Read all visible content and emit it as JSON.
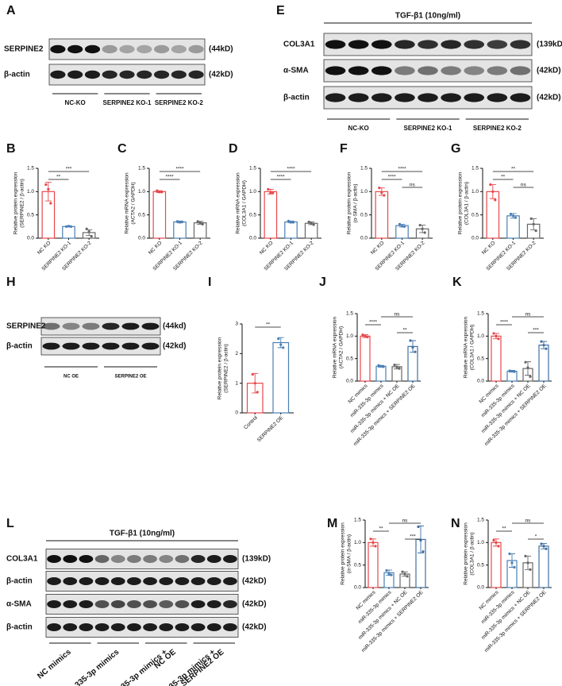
{
  "blots": [
    {
      "panel": "A",
      "rows": [
        {
          "name": "SERPINE2",
          "size": "(44kD)"
        },
        {
          "name": "β-actin",
          "size": "(42kD)"
        }
      ],
      "groups": [
        "NC-KO",
        "SERPINE2 KO-1",
        "SERPINE2 KO-2"
      ]
    },
    {
      "panel": "E",
      "header": "TGF-β1 (10ng/ml)",
      "rows": [
        {
          "name": "COL3A1",
          "size": "(139kD)"
        },
        {
          "name": "α-SMA",
          "size": "(42kD)"
        },
        {
          "name": "β-actin",
          "size": "(42kD)"
        }
      ],
      "groups": [
        "NC-KO",
        "SERPINE2 KO-1",
        "SERPINE2 KO-2"
      ]
    },
    {
      "panel": "H",
      "rows": [
        {
          "name": "SERPINE2",
          "size": "(44kd)"
        },
        {
          "name": "β-actin",
          "size": "(42kd)"
        }
      ],
      "groups": [
        "NC OE",
        "SERPINE2 OE"
      ]
    },
    {
      "panel": "L",
      "header": "TGF-β1 (10ng/ml)",
      "rows": [
        {
          "name": "COL3A1",
          "size": "(139kD)"
        },
        {
          "name": "β-actin",
          "size": "(42kD)"
        },
        {
          "name": "α-SMA",
          "size": "(42kD)"
        },
        {
          "name": "β-actin",
          "size": "(42kD)"
        }
      ],
      "groups": [
        [
          "NC mimics"
        ],
        [
          "miR-335-3p mimics"
        ],
        [
          "miR-335-3p mimics +",
          "NC OE"
        ],
        [
          "miR-335-3p mimics +",
          "SERPINE2 OE"
        ]
      ]
    }
  ],
  "chart_data": [
    {
      "type": "bar",
      "panel": "B",
      "ylabel": [
        "Relative protein expression",
        "(SERPINE2 / β-actin)"
      ],
      "categories": [
        "NC KO",
        "SERPINE2 KO-1",
        "SERPINE2 KO-2"
      ],
      "colors": [
        "#e8474b",
        "#4a7fb5",
        "#666666"
      ],
      "values": [
        1.0,
        0.25,
        0.12
      ],
      "errors": [
        0.2,
        0.01,
        0.06
      ],
      "points": [
        [
          1.15,
          1.05,
          0.75
        ],
        [
          0.25,
          0.26,
          0.25
        ],
        [
          0.2,
          0.14,
          0.04
        ]
      ],
      "ylim": [
        0,
        1.5
      ],
      "yticks": [
        {
          "value": 0,
          "label": "0.0"
        },
        {
          "value": 0.5,
          "label": "0.5"
        },
        {
          "value": 1,
          "label": "1.0"
        },
        {
          "value": 1.5,
          "label": "1.5"
        }
      ],
      "significance": [
        {
          "pair": [
            "NC KO",
            "SERPINE2 KO-2"
          ],
          "label": "***"
        },
        {
          "pair": [
            "NC KO",
            "SERPINE2 KO-1"
          ],
          "label": "**"
        }
      ]
    },
    {
      "type": "bar",
      "panel": "C",
      "ylabel": [
        "Relative mRNA expression",
        "(ACTA2 / GAPDH)"
      ],
      "categories": [
        "NC KO",
        "SERPINE2 KO-1",
        "SERPINE2 KO-2"
      ],
      "colors": [
        "#e8474b",
        "#4a7fb5",
        "#666666"
      ],
      "values": [
        1.0,
        0.35,
        0.33
      ],
      "errors": [
        0.02,
        0.02,
        0.03
      ],
      "points": [
        [
          1.02,
          0.99,
          0.99
        ],
        [
          0.36,
          0.34,
          0.35
        ],
        [
          0.36,
          0.33,
          0.3
        ]
      ],
      "ylim": [
        0,
        1.5
      ],
      "yticks": [
        {
          "value": 0,
          "label": "0.0"
        },
        {
          "value": 0.5,
          "label": "0.5"
        },
        {
          "value": 1,
          "label": "1.0"
        },
        {
          "value": 1.5,
          "label": "1.5"
        }
      ],
      "significance": [
        {
          "pair": [
            "NC KO",
            "SERPINE2 KO-2"
          ],
          "label": "****"
        },
        {
          "pair": [
            "NC KO",
            "SERPINE2 KO-1"
          ],
          "label": "****"
        }
      ]
    },
    {
      "type": "bar",
      "panel": "D",
      "ylabel": [
        "Relative mRNA expression",
        "(COL3A1 / GAPDH)"
      ],
      "categories": [
        "NC KO",
        "SERPINE2 KO-1",
        "SERPINE2 KO-2"
      ],
      "colors": [
        "#e8474b",
        "#4a7fb5",
        "#666666"
      ],
      "values": [
        1.0,
        0.35,
        0.32
      ],
      "errors": [
        0.05,
        0.02,
        0.03
      ],
      "points": [
        [
          1.05,
          0.97,
          0.98
        ],
        [
          0.37,
          0.34,
          0.34
        ],
        [
          0.35,
          0.32,
          0.29
        ]
      ],
      "ylim": [
        0,
        1.5
      ],
      "yticks": [
        {
          "value": 0,
          "label": "0.0"
        },
        {
          "value": 0.5,
          "label": "0.5"
        },
        {
          "value": 1,
          "label": "1.0"
        },
        {
          "value": 1.5,
          "label": "1.5"
        }
      ],
      "significance": [
        {
          "pair": [
            "NC KO",
            "SERPINE2 KO-2"
          ],
          "label": "****"
        },
        {
          "pair": [
            "NC KO",
            "SERPINE2 KO-1"
          ],
          "label": "****"
        }
      ]
    },
    {
      "type": "bar",
      "panel": "F",
      "ylabel": [
        "Relative protein expression",
        "(α-SMA / β-actin)"
      ],
      "categories": [
        "NC KO",
        "SERPINE2 KO-1",
        "SERPINE2 KO-2"
      ],
      "colors": [
        "#e8474b",
        "#4a7fb5",
        "#666666"
      ],
      "values": [
        1.0,
        0.27,
        0.2
      ],
      "errors": [
        0.08,
        0.03,
        0.08
      ],
      "points": [
        [
          1.08,
          0.98,
          0.92
        ],
        [
          0.3,
          0.26,
          0.25
        ],
        [
          0.28,
          0.2,
          0.12
        ]
      ],
      "ylim": [
        0,
        1.5
      ],
      "yticks": [
        {
          "value": 0,
          "label": "0.0"
        },
        {
          "value": 0.5,
          "label": "0.5"
        },
        {
          "value": 1,
          "label": "1.0"
        },
        {
          "value": 1.5,
          "label": "1.5"
        }
      ],
      "significance": [
        {
          "pair": [
            "NC KO",
            "SERPINE2 KO-2"
          ],
          "label": "****"
        },
        {
          "pair": [
            "NC KO",
            "SERPINE2 KO-1"
          ],
          "label": "****"
        },
        {
          "pair": [
            "SERPINE2 KO-1",
            "SERPINE2 KO-2"
          ],
          "label": "ns"
        }
      ]
    },
    {
      "type": "bar",
      "panel": "G",
      "ylabel": [
        "Relative protein expression",
        "(COL3A1 / β-actin)"
      ],
      "categories": [
        "NC KO",
        "SERPINE2 KO-1",
        "SERPINE2 KO-2"
      ],
      "colors": [
        "#e8474b",
        "#4a7fb5",
        "#666666"
      ],
      "values": [
        1.0,
        0.48,
        0.3
      ],
      "errors": [
        0.15,
        0.05,
        0.12
      ],
      "points": [
        [
          1.15,
          1.0,
          0.82
        ],
        [
          0.52,
          0.48,
          0.44
        ],
        [
          0.42,
          0.3,
          0.16
        ]
      ],
      "ylim": [
        0,
        1.5
      ],
      "yticks": [
        {
          "value": 0,
          "label": "0.0"
        },
        {
          "value": 0.5,
          "label": "0.5"
        },
        {
          "value": 1,
          "label": "1.0"
        },
        {
          "value": 1.5,
          "label": "1.5"
        }
      ],
      "significance": [
        {
          "pair": [
            "NC KO",
            "SERPINE2 KO-2"
          ],
          "label": "**"
        },
        {
          "pair": [
            "NC KO",
            "SERPINE2 KO-1"
          ],
          "label": "**"
        },
        {
          "pair": [
            "SERPINE2 KO-1",
            "SERPINE2 KO-2"
          ],
          "label": "ns"
        }
      ]
    },
    {
      "type": "bar",
      "panel": "I",
      "ylabel": [
        "Relative protein expression",
        "(SERPINE2 / β-actin)"
      ],
      "categories": [
        "Control",
        "SERPINE2 OE"
      ],
      "colors": [
        "#e8474b",
        "#4a7fb5"
      ],
      "values": [
        1.0,
        2.37
      ],
      "errors": [
        0.33,
        0.17
      ],
      "points": [
        [
          1.3,
          1.0,
          0.7
        ],
        [
          2.5,
          2.3,
          2.2
        ]
      ],
      "ylim": [
        0,
        3
      ],
      "yticks": [
        0,
        1,
        2,
        3
      ],
      "significance": [
        {
          "pair": [
            "Control",
            "SERPINE2 OE"
          ],
          "label": "**"
        }
      ]
    },
    {
      "type": "bar",
      "panel": "J",
      "ylabel": [
        "Relative mRNA expression",
        "(ACTA2 / GAPDH)"
      ],
      "categories": [
        "NC mimics",
        "miR-335-3p mimics",
        "miR-335-3p mimics + NC OE",
        "miR-335-3p mimics + SERPINE2 OE"
      ],
      "colors": [
        "#e8474b",
        "#4a7fb5",
        "#666666",
        "#3f6fa0"
      ],
      "values": [
        1.0,
        0.33,
        0.32,
        0.77
      ],
      "errors": [
        0.03,
        0.02,
        0.05,
        0.13
      ],
      "points": [
        [
          1.03,
          1.0,
          0.98
        ],
        [
          0.35,
          0.33,
          0.32
        ],
        [
          0.36,
          0.31,
          0.28
        ],
        [
          0.9,
          0.75,
          0.65
        ]
      ],
      "ylim": [
        0,
        1.5
      ],
      "yticks": [
        {
          "value": 0,
          "label": "0.0"
        },
        {
          "value": 0.5,
          "label": "0.5"
        },
        {
          "value": 1,
          "label": "1.0"
        },
        {
          "value": 1.5,
          "label": "1.5"
        }
      ],
      "significance": [
        {
          "pair": [
            "miR-335-3p mimics",
            "miR-335-3p mimics + SERPINE2 OE"
          ],
          "label": "ns"
        },
        {
          "pair": [
            "NC mimics",
            "miR-335-3p mimics"
          ],
          "label": "****"
        },
        {
          "pair": [
            "miR-335-3p mimics + NC OE",
            "miR-335-3p mimics + SERPINE2 OE"
          ],
          "label": "**"
        }
      ]
    },
    {
      "type": "bar",
      "panel": "K",
      "ylabel": [
        "Relative mRNA expression",
        "(COL3A1 / GAPDH)"
      ],
      "categories": [
        "NC mimics",
        "miR-335-3p mimics",
        "miR-335-3p mimics + NC OE",
        "miR-335-3p mimics + SERPINE2 OE"
      ],
      "colors": [
        "#e8474b",
        "#4a7fb5",
        "#666666",
        "#3f6fa0"
      ],
      "values": [
        1.0,
        0.22,
        0.28,
        0.8
      ],
      "errors": [
        0.06,
        0.02,
        0.15,
        0.08
      ],
      "points": [
        [
          1.06,
          1.0,
          0.94
        ],
        [
          0.23,
          0.22,
          0.21
        ],
        [
          0.42,
          0.3,
          0.1
        ],
        [
          0.88,
          0.8,
          0.72
        ]
      ],
      "ylim": [
        0,
        1.5
      ],
      "yticks": [
        {
          "value": 0,
          "label": "0.0"
        },
        {
          "value": 0.5,
          "label": "0.5"
        },
        {
          "value": 1,
          "label": "1.0"
        },
        {
          "value": 1.5,
          "label": "1.5"
        }
      ],
      "significance": [
        {
          "pair": [
            "miR-335-3p mimics",
            "miR-335-3p mimics + SERPINE2 OE"
          ],
          "label": "ns"
        },
        {
          "pair": [
            "NC mimics",
            "miR-335-3p mimics"
          ],
          "label": "****"
        },
        {
          "pair": [
            "miR-335-3p mimics + NC OE",
            "miR-335-3p mimics + SERPINE2 OE"
          ],
          "label": "***"
        }
      ]
    },
    {
      "type": "bar",
      "panel": "M",
      "ylabel": [
        "Relative protein expression",
        "(α-SMA / β-actin)"
      ],
      "categories": [
        "NC mimics",
        "miR-335-3p mimics",
        "miR-335-3p mimics + NC OE",
        "miR-335-3p mimics + SERPINE2 OE"
      ],
      "colors": [
        "#e8474b",
        "#4a7fb5",
        "#666666",
        "#3f6fa0"
      ],
      "values": [
        1.0,
        0.33,
        0.3,
        1.07
      ],
      "errors": [
        0.08,
        0.06,
        0.05,
        0.3
      ],
      "points": [
        [
          1.08,
          1.0,
          0.92
        ],
        [
          0.38,
          0.3,
          0.28
        ],
        [
          0.35,
          0.3,
          0.25
        ],
        [
          1.35,
          1.05,
          0.8
        ]
      ],
      "ylim": [
        0,
        1.5
      ],
      "yticks": [
        {
          "value": 0,
          "label": "0.0"
        },
        {
          "value": 0.5,
          "label": "0.5"
        },
        {
          "value": 1,
          "label": "1.0"
        },
        {
          "value": 1.5,
          "label": "1.5"
        }
      ],
      "significance": [
        {
          "pair": [
            "miR-335-3p mimics",
            "miR-335-3p mimics + SERPINE2 OE"
          ],
          "label": "ns"
        },
        {
          "pair": [
            "NC mimics",
            "miR-335-3p mimics"
          ],
          "label": "**"
        },
        {
          "pair": [
            "miR-335-3p mimics + NC OE",
            "miR-335-3p mimics + SERPINE2 OE"
          ],
          "label": "***"
        }
      ]
    },
    {
      "type": "bar",
      "panel": "N",
      "ylabel": [
        "Relative protein expression",
        "(COL3A1 / β-actin)"
      ],
      "categories": [
        "NC mimics",
        "miR-335-3p mimics",
        "miR-335-3p mimics + NC OE",
        "miR-335-3p mimics + SERPINE2 OE"
      ],
      "colors": [
        "#e8474b",
        "#4a7fb5",
        "#666666",
        "#3f6fa0"
      ],
      "values": [
        1.0,
        0.6,
        0.55,
        0.92
      ],
      "errors": [
        0.08,
        0.15,
        0.15,
        0.06
      ],
      "points": [
        [
          1.05,
          1.0,
          0.92
        ],
        [
          0.75,
          0.55,
          0.45
        ],
        [
          0.7,
          0.55,
          0.4
        ],
        [
          0.97,
          0.92,
          0.86
        ]
      ],
      "ylim": [
        0,
        1.5
      ],
      "yticks": [
        {
          "value": 0,
          "label": "0.0"
        },
        {
          "value": 0.5,
          "label": "0.5"
        },
        {
          "value": 1,
          "label": "1.0"
        },
        {
          "value": 1.5,
          "label": "1.5"
        }
      ],
      "significance": [
        {
          "pair": [
            "miR-335-3p mimics",
            "miR-335-3p mimics + SERPINE2 OE"
          ],
          "label": "ns"
        },
        {
          "pair": [
            "NC mimics",
            "miR-335-3p mimics"
          ],
          "label": "**"
        },
        {
          "pair": [
            "miR-335-3p mimics + NC OE",
            "miR-335-3p mimics + SERPINE2 OE"
          ],
          "label": "*"
        }
      ]
    }
  ]
}
